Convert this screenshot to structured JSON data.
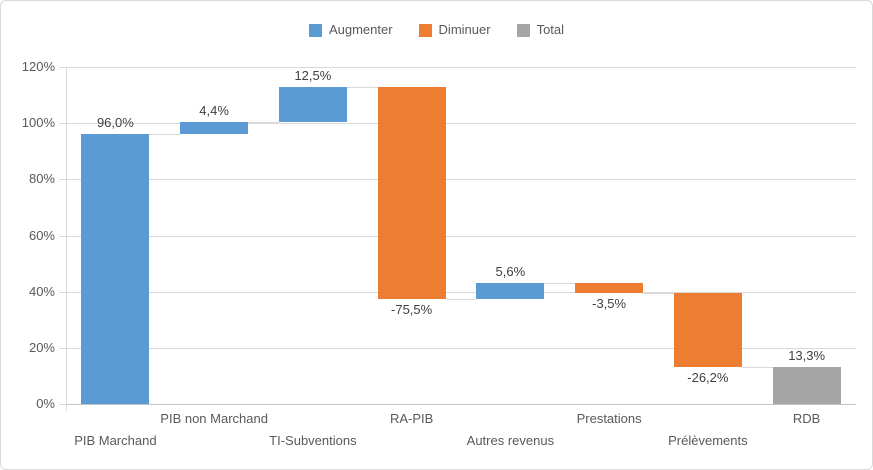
{
  "window": {
    "background": "#FFFFFF",
    "border_color": "#D9D9D9"
  },
  "colors": {
    "increase": "#5B9BD5",
    "decrease": "#ED7D31",
    "total": "#A5A5A5",
    "gridline": "#D9D9D9",
    "axis_line": "#C6C6C6",
    "axis_text": "#595959",
    "data_label_text": "#404040"
  },
  "legend": {
    "position": "top",
    "items": [
      {
        "label": "Augmenter",
        "kind": "increase"
      },
      {
        "label": "Diminuer",
        "kind": "decrease"
      },
      {
        "label": "Total",
        "kind": "total"
      }
    ]
  },
  "chart_data": {
    "type": "bar",
    "subtype": "waterfall",
    "title": "",
    "xlabel": "",
    "ylabel": "",
    "ylim": [
      0,
      120
    ],
    "y_tick_step": 20,
    "y_tick_labels": [
      "0%",
      "20%",
      "40%",
      "60%",
      "80%",
      "100%",
      "120%"
    ],
    "grid": true,
    "legend_position": "top",
    "categories": [
      "PIB Marchand",
      "PIB non Marchand",
      "TI-Subventions",
      "RA-PIB",
      "Autres revenus",
      "Prestations",
      "Prélèvements",
      "RDB"
    ],
    "points": [
      {
        "category": "PIB Marchand",
        "value": 96.0,
        "label": "96,0%",
        "kind": "increase"
      },
      {
        "category": "PIB non Marchand",
        "value": 4.4,
        "label": "4,4%",
        "kind": "increase"
      },
      {
        "category": "TI-Subventions",
        "value": 12.5,
        "label": "12,5%",
        "kind": "increase"
      },
      {
        "category": "RA-PIB",
        "value": -75.5,
        "label": "-75,5%",
        "kind": "decrease"
      },
      {
        "category": "Autres revenus",
        "value": 5.6,
        "label": "5,6%",
        "kind": "increase"
      },
      {
        "category": "Prestations",
        "value": -3.5,
        "label": "-3,5%",
        "kind": "decrease"
      },
      {
        "category": "Prélèvements",
        "value": -26.2,
        "label": "-26,2%",
        "kind": "decrease"
      },
      {
        "category": "RDB",
        "value": 13.3,
        "label": "13,3%",
        "kind": "total"
      }
    ],
    "running_totals": [
      96.0,
      100.4,
      112.9,
      37.4,
      43.0,
      39.5,
      13.3,
      13.3
    ]
  }
}
